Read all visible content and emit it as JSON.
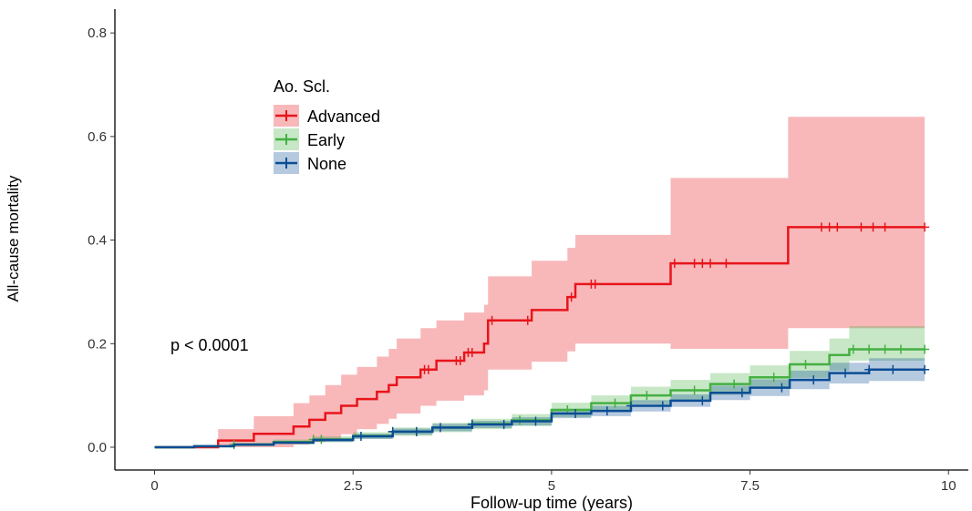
{
  "chart_data": {
    "type": "step",
    "x_label": "Follow-up time (years)",
    "y_label": "All-cause mortality",
    "annotation": "p < 0.0001",
    "legend_title": "Ao. Scl.",
    "xlim": [
      -0.5,
      10.25
    ],
    "ylim": [
      -0.044,
      0.846
    ],
    "xticks": [
      0,
      2.5,
      5,
      7.5,
      10
    ],
    "yticks": [
      {
        "value": 0,
        "label": "0.0"
      },
      0.2,
      0.4,
      0.6,
      0.8
    ],
    "series": [
      {
        "name": "Advanced",
        "color": "#e8141b",
        "x": [
          0,
          0.8,
          1.25,
          1.75,
          1.95,
          2.15,
          2.35,
          2.55,
          2.8,
          2.95,
          3.05,
          3.35,
          3.55,
          3.9,
          4.15,
          4.2,
          4.75,
          5.2,
          5.3,
          6.5,
          7.98,
          9.7
        ],
        "values": [
          0,
          0.013,
          0.026,
          0.04,
          0.053,
          0.066,
          0.08,
          0.093,
          0.107,
          0.12,
          0.135,
          0.15,
          0.167,
          0.183,
          0.2,
          0.245,
          0.265,
          0.29,
          0.315,
          0.355,
          0.425,
          0.425
        ],
        "upper": [
          0,
          0.035,
          0.06,
          0.085,
          0.1,
          0.12,
          0.14,
          0.155,
          0.175,
          0.19,
          0.21,
          0.23,
          0.245,
          0.26,
          0.275,
          0.33,
          0.36,
          0.385,
          0.41,
          0.52,
          0.638,
          0.638
        ],
        "lower": [
          0,
          0,
          0,
          0.005,
          0.01,
          0.015,
          0.025,
          0.035,
          0.045,
          0.055,
          0.065,
          0.08,
          0.09,
          0.1,
          0.11,
          0.15,
          0.165,
          0.185,
          0.2,
          0.19,
          0.23,
          0.23
        ],
        "censored": [
          3.4,
          3.45,
          3.8,
          3.85,
          3.95,
          4.0,
          4.25,
          4.7,
          5.25,
          5.5,
          5.55,
          6.55,
          6.8,
          6.9,
          7.0,
          7.2,
          8.4,
          8.5,
          8.6,
          8.9,
          9.05,
          9.2,
          9.7
        ]
      },
      {
        "name": "Early",
        "color": "#44b041",
        "x": [
          0,
          0.5,
          1,
          1.5,
          2,
          2.5,
          3,
          3.5,
          4,
          4.5,
          5,
          5.5,
          6,
          6.5,
          7,
          7.5,
          8,
          8.5,
          8.75,
          9.7
        ],
        "values": [
          0,
          0.002,
          0.005,
          0.01,
          0.015,
          0.022,
          0.03,
          0.038,
          0.045,
          0.052,
          0.072,
          0.085,
          0.1,
          0.11,
          0.122,
          0.135,
          0.16,
          0.178,
          0.189,
          0.189
        ],
        "upper": [
          0,
          0.004,
          0.009,
          0.015,
          0.021,
          0.029,
          0.038,
          0.047,
          0.055,
          0.064,
          0.086,
          0.1,
          0.117,
          0.13,
          0.143,
          0.158,
          0.186,
          0.21,
          0.234,
          0.234
        ],
        "lower": [
          0,
          0,
          0.002,
          0.006,
          0.01,
          0.016,
          0.022,
          0.029,
          0.035,
          0.041,
          0.058,
          0.07,
          0.083,
          0.091,
          0.101,
          0.113,
          0.134,
          0.148,
          0.167,
          0.167
        ],
        "censored": [
          1.0,
          2.0,
          2.1,
          3.0,
          3.3,
          4.0,
          4.6,
          5.2,
          5.8,
          6.2,
          6.8,
          7.3,
          7.8,
          8.2,
          8.8,
          9.0,
          9.2,
          9.4,
          9.7
        ]
      },
      {
        "name": "None",
        "color": "#0b4d94",
        "x": [
          0,
          0.5,
          1,
          1.5,
          2,
          2.5,
          3,
          3.5,
          4,
          4.5,
          5,
          5.5,
          6,
          6.5,
          7,
          7.5,
          8,
          8.5,
          9,
          9.7
        ],
        "values": [
          0,
          0.002,
          0.005,
          0.009,
          0.014,
          0.021,
          0.03,
          0.038,
          0.044,
          0.05,
          0.065,
          0.07,
          0.08,
          0.09,
          0.105,
          0.115,
          0.13,
          0.143,
          0.15,
          0.15
        ],
        "upper": [
          0,
          0.003,
          0.007,
          0.012,
          0.018,
          0.026,
          0.036,
          0.045,
          0.051,
          0.058,
          0.074,
          0.08,
          0.091,
          0.102,
          0.119,
          0.131,
          0.148,
          0.163,
          0.172,
          0.172
        ],
        "lower": [
          0,
          0.001,
          0.003,
          0.006,
          0.01,
          0.016,
          0.024,
          0.031,
          0.037,
          0.042,
          0.056,
          0.06,
          0.069,
          0.078,
          0.091,
          0.099,
          0.112,
          0.123,
          0.128,
          0.128
        ],
        "censored": [
          2.6,
          3.0,
          3.3,
          3.6,
          4.0,
          4.4,
          4.8,
          5.3,
          5.7,
          6.0,
          6.4,
          6.9,
          7.4,
          7.9,
          8.3,
          8.7,
          9.0,
          9.3,
          9.7
        ]
      }
    ]
  }
}
